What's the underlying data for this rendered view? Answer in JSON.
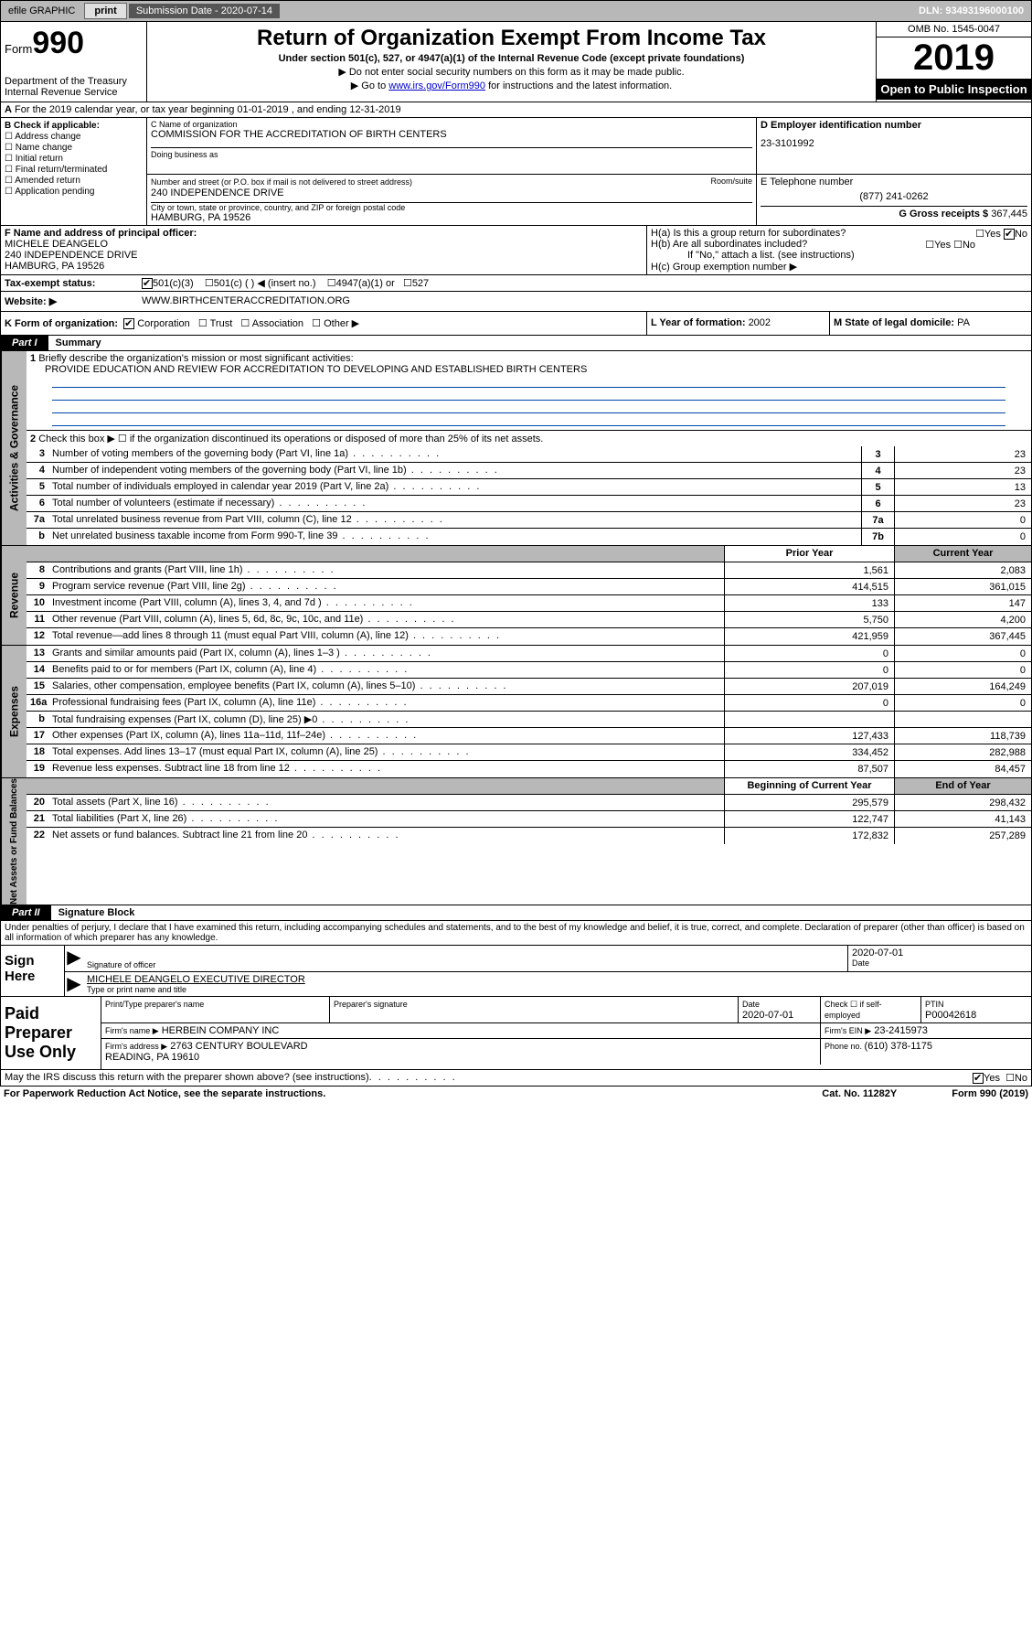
{
  "topbar": {
    "efile": "efile GRAPHIC",
    "print": "print",
    "sub_label": "Submission Date - 2020-07-14",
    "dln": "DLN: 93493196000100"
  },
  "header": {
    "form_prefix": "Form",
    "form_num": "990",
    "dept": "Department of the Treasury\nInternal Revenue Service",
    "title": "Return of Organization Exempt From Income Tax",
    "subtitle": "Under section 501(c), 527, or 4947(a)(1) of the Internal Revenue Code (except private foundations)",
    "note1": "▶ Do not enter social security numbers on this form as it may be made public.",
    "note2_pre": "▶ Go to ",
    "note2_link": "www.irs.gov/Form990",
    "note2_post": " for instructions and the latest information.",
    "omb": "OMB No. 1545-0047",
    "year": "2019",
    "open_pub": "Open to Public Inspection"
  },
  "section_a": {
    "tax_year": "For the 2019 calendar year, or tax year beginning 01-01-2019   , and ending 12-31-2019",
    "b_label": "B Check if applicable:",
    "b_items": [
      "Address change",
      "Name change",
      "Initial return",
      "Final return/terminated",
      "Amended return",
      "Application pending"
    ],
    "c_name_lbl": "C Name of organization",
    "org_name": "COMMISSION FOR THE ACCREDITATION OF BIRTH CENTERS",
    "dba_lbl": "Doing business as",
    "addr_lbl": "Number and street (or P.O. box if mail is not delivered to street address)",
    "room_lbl": "Room/suite",
    "street": "240 INDEPENDENCE DRIVE",
    "city_lbl": "City or town, state or province, country, and ZIP or foreign postal code",
    "city": "HAMBURG, PA  19526",
    "d_lbl": "D Employer identification number",
    "ein": "23-3101992",
    "e_lbl": "E Telephone number",
    "phone": "(877) 241-0262",
    "g_lbl": "G Gross receipts $ ",
    "gross": "367,445"
  },
  "row_f": {
    "f_lbl": "F Name and address of principal officer:",
    "officer": "MICHELE DEANGELO\n240 INDEPENDENCE DRIVE\nHAMBURG, PA  19526",
    "ha": "H(a)  Is this a group return for subordinates?",
    "hb": "H(b)  Are all subordinates included?",
    "hb_note": "If \"No,\" attach a list. (see instructions)",
    "hc": "H(c)  Group exemption number ▶"
  },
  "row_i": {
    "lbl": "Tax-exempt status:",
    "opt1": "501(c)(3)",
    "opt2": "501(c) (    ) ◀ (insert no.)",
    "opt3": "4947(a)(1) or",
    "opt4": "527"
  },
  "row_j": {
    "lbl": "Website: ▶",
    "val": "WWW.BIRTHCENTERACCREDITATION.ORG"
  },
  "row_k": {
    "k_lbl": "K Form of organization:",
    "corp": "Corporation",
    "trust": "Trust",
    "assoc": "Association",
    "other": "Other ▶",
    "l_lbl": "L Year of formation: ",
    "l_val": "2002",
    "m_lbl": "M State of legal domicile: ",
    "m_val": "PA"
  },
  "part1": {
    "hdr": "Part I",
    "title": "Summary",
    "line1_lbl": "Briefly describe the organization's mission or most significant activities:",
    "line1_val": "PROVIDE EDUCATION AND REVIEW FOR ACCREDITATION TO DEVELOPING AND ESTABLISHED BIRTH CENTERS",
    "line2": "Check this box ▶ ☐  if the organization discontinued its operations or disposed of more than 25% of its net assets.",
    "governance_label": "Activities & Governance",
    "lines_gov": [
      {
        "n": "3",
        "t": "Number of voting members of the governing body (Part VI, line 1a)",
        "b": "3",
        "v": "23"
      },
      {
        "n": "4",
        "t": "Number of independent voting members of the governing body (Part VI, line 1b)",
        "b": "4",
        "v": "23"
      },
      {
        "n": "5",
        "t": "Total number of individuals employed in calendar year 2019 (Part V, line 2a)",
        "b": "5",
        "v": "13"
      },
      {
        "n": "6",
        "t": "Total number of volunteers (estimate if necessary)",
        "b": "6",
        "v": "23"
      },
      {
        "n": "7a",
        "t": "Total unrelated business revenue from Part VIII, column (C), line 12",
        "b": "7a",
        "v": "0"
      },
      {
        "n": "b",
        "t": "Net unrelated business taxable income from Form 990-T, line 39",
        "b": "7b",
        "v": "0"
      }
    ],
    "py_hdr": "Prior Year",
    "cy_hdr": "Current Year",
    "revenue_label": "Revenue",
    "lines_rev": [
      {
        "n": "8",
        "t": "Contributions and grants (Part VIII, line 1h)",
        "py": "1,561",
        "cy": "2,083"
      },
      {
        "n": "9",
        "t": "Program service revenue (Part VIII, line 2g)",
        "py": "414,515",
        "cy": "361,015"
      },
      {
        "n": "10",
        "t": "Investment income (Part VIII, column (A), lines 3, 4, and 7d )",
        "py": "133",
        "cy": "147"
      },
      {
        "n": "11",
        "t": "Other revenue (Part VIII, column (A), lines 5, 6d, 8c, 9c, 10c, and 11e)",
        "py": "5,750",
        "cy": "4,200"
      },
      {
        "n": "12",
        "t": "Total revenue—add lines 8 through 11 (must equal Part VIII, column (A), line 12)",
        "py": "421,959",
        "cy": "367,445"
      }
    ],
    "expenses_label": "Expenses",
    "lines_exp": [
      {
        "n": "13",
        "t": "Grants and similar amounts paid (Part IX, column (A), lines 1–3 )",
        "py": "0",
        "cy": "0"
      },
      {
        "n": "14",
        "t": "Benefits paid to or for members (Part IX, column (A), line 4)",
        "py": "0",
        "cy": "0"
      },
      {
        "n": "15",
        "t": "Salaries, other compensation, employee benefits (Part IX, column (A), lines 5–10)",
        "py": "207,019",
        "cy": "164,249"
      },
      {
        "n": "16a",
        "t": "Professional fundraising fees (Part IX, column (A), line 11e)",
        "py": "0",
        "cy": "0"
      },
      {
        "n": "b",
        "t": "Total fundraising expenses (Part IX, column (D), line 25) ▶0",
        "py": "",
        "cy": ""
      },
      {
        "n": "17",
        "t": "Other expenses (Part IX, column (A), lines 11a–11d, 11f–24e)",
        "py": "127,433",
        "cy": "118,739"
      },
      {
        "n": "18",
        "t": "Total expenses. Add lines 13–17 (must equal Part IX, column (A), line 25)",
        "py": "334,452",
        "cy": "282,988"
      },
      {
        "n": "19",
        "t": "Revenue less expenses. Subtract line 18 from line 12",
        "py": "87,507",
        "cy": "84,457"
      }
    ],
    "net_label": "Net Assets or Fund Balances",
    "boy_hdr": "Beginning of Current Year",
    "eoy_hdr": "End of Year",
    "lines_net": [
      {
        "n": "20",
        "t": "Total assets (Part X, line 16)",
        "py": "295,579",
        "cy": "298,432"
      },
      {
        "n": "21",
        "t": "Total liabilities (Part X, line 26)",
        "py": "122,747",
        "cy": "41,143"
      },
      {
        "n": "22",
        "t": "Net assets or fund balances. Subtract line 21 from line 20",
        "py": "172,832",
        "cy": "257,289"
      }
    ]
  },
  "part2": {
    "hdr": "Part II",
    "title": "Signature Block",
    "perjury": "Under penalties of perjury, I declare that I have examined this return, including accompanying schedules and statements, and to the best of my knowledge and belief, it is true, correct, and complete. Declaration of preparer (other than officer) is based on all information of which preparer has any knowledge.",
    "sign_here": "Sign Here",
    "sig_officer_lbl": "Signature of officer",
    "sig_date": "2020-07-01",
    "date_lbl": "Date",
    "officer_name": "MICHELE DEANGELO  EXECUTIVE DIRECTOR",
    "type_name_lbl": "Type or print name and title"
  },
  "paid_prep": {
    "title": "Paid Preparer Use Only",
    "prep_name_lbl": "Print/Type preparer's name",
    "prep_sig_lbl": "Preparer's signature",
    "date_lbl": "Date",
    "date": "2020-07-01",
    "check_lbl": "Check ☐ if self-employed",
    "ptin_lbl": "PTIN",
    "ptin": "P00042618",
    "firm_name_lbl": "Firm's name    ▶",
    "firm_name": "HERBEIN COMPANY INC",
    "firm_ein_lbl": "Firm's EIN ▶",
    "firm_ein": "23-2415973",
    "firm_addr_lbl": "Firm's address ▶",
    "firm_addr": "2763 CENTURY BOULEVARD\nREADING, PA  19610",
    "phone_lbl": "Phone no. ",
    "phone": "(610) 378-1175"
  },
  "footer": {
    "discuss": "May the IRS discuss this return with the preparer shown above? (see instructions)",
    "yes": "Yes",
    "no": "No",
    "paperwork": "For Paperwork Reduction Act Notice, see the separate instructions.",
    "cat": "Cat. No. 11282Y",
    "form": "Form 990 (2019)"
  }
}
